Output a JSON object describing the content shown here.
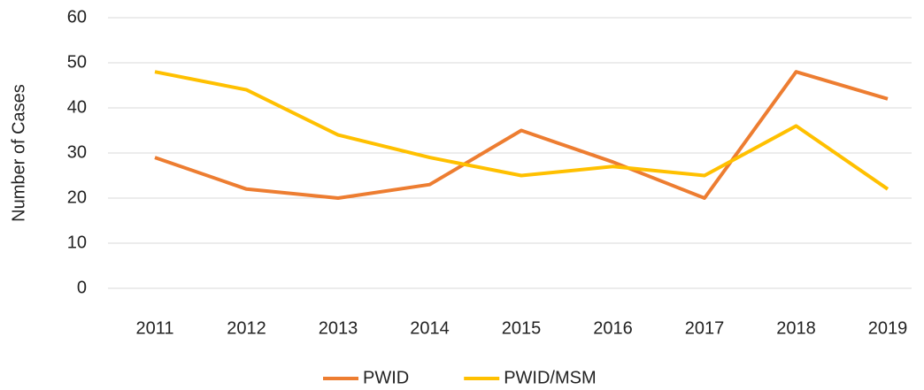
{
  "chart_data": {
    "type": "line",
    "y_label": "Number of Cases",
    "categories": [
      "2011",
      "2012",
      "2013",
      "2014",
      "2015",
      "2016",
      "2017",
      "2018",
      "2019"
    ],
    "series": [
      {
        "name": "PWID",
        "color": "#ED7D31",
        "values": [
          29,
          22,
          20,
          23,
          35,
          28,
          20,
          48,
          42
        ]
      },
      {
        "name": "PWID/MSM",
        "color": "#FFC000",
        "values": [
          48,
          44,
          34,
          29,
          25,
          27,
          25,
          36,
          22
        ]
      }
    ],
    "ylim": [
      0,
      60
    ],
    "yticks": [
      0,
      10,
      20,
      30,
      40,
      50,
      60
    ],
    "grid": true,
    "legend": "bottom"
  }
}
